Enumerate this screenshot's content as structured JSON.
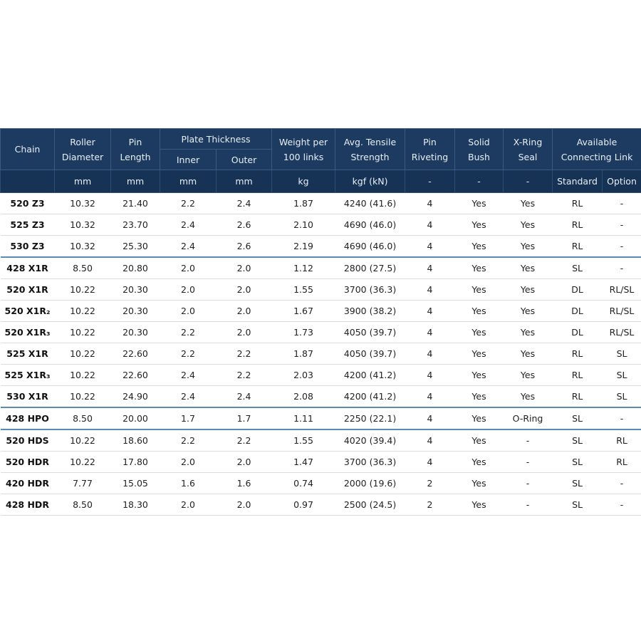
{
  "table": {
    "header": {
      "chain": "Chain",
      "roller": "Roller Diameter",
      "pin": "Pin Length",
      "plate": "Plate Thickness",
      "inner": "Inner",
      "outer": "Outer",
      "weight": "Weight per 100 links",
      "tensile": "Avg. Tensile Strength",
      "riveting": "Pin Riveting",
      "bush": "Solid Bush",
      "seal": "X-Ring Seal",
      "link": "Available Connecting Link"
    },
    "units": [
      "mm",
      "mm",
      "mm",
      "mm",
      "kg",
      "kgf (kN)",
      "-",
      "-",
      "-",
      "Standard",
      "Option"
    ],
    "groups": [
      [
        [
          "520 Z3",
          "10.32",
          "21.40",
          "2.2",
          "2.4",
          "1.87",
          "4240 (41.6)",
          "4",
          "Yes",
          "Yes",
          "RL",
          "-"
        ],
        [
          "525 Z3",
          "10.32",
          "23.70",
          "2.4",
          "2.6",
          "2.10",
          "4690 (46.0)",
          "4",
          "Yes",
          "Yes",
          "RL",
          "-"
        ],
        [
          "530 Z3",
          "10.32",
          "25.30",
          "2.4",
          "2.6",
          "2.19",
          "4690 (46.0)",
          "4",
          "Yes",
          "Yes",
          "RL",
          "-"
        ]
      ],
      [
        [
          "428 X1R",
          "8.50",
          "20.80",
          "2.0",
          "2.0",
          "1.12",
          "2800 (27.5)",
          "4",
          "Yes",
          "Yes",
          "SL",
          "-"
        ],
        [
          "520 X1R",
          "10.22",
          "20.30",
          "2.0",
          "2.0",
          "1.55",
          "3700 (36.3)",
          "4",
          "Yes",
          "Yes",
          "DL",
          "RL/SL"
        ],
        [
          "520 X1R₂",
          "10.22",
          "20.30",
          "2.0",
          "2.0",
          "1.67",
          "3900 (38.2)",
          "4",
          "Yes",
          "Yes",
          "DL",
          "RL/SL"
        ],
        [
          "520 X1R₃",
          "10.22",
          "20.30",
          "2.2",
          "2.0",
          "1.73",
          "4050 (39.7)",
          "4",
          "Yes",
          "Yes",
          "DL",
          "RL/SL"
        ],
        [
          "525 X1R",
          "10.22",
          "22.60",
          "2.2",
          "2.2",
          "1.87",
          "4050 (39.7)",
          "4",
          "Yes",
          "Yes",
          "RL",
          "SL"
        ],
        [
          "525 X1R₃",
          "10.22",
          "22.60",
          "2.4",
          "2.2",
          "2.03",
          "4200 (41.2)",
          "4",
          "Yes",
          "Yes",
          "RL",
          "SL"
        ],
        [
          "530 X1R",
          "10.22",
          "24.90",
          "2.4",
          "2.4",
          "2.08",
          "4200 (41.2)",
          "4",
          "Yes",
          "Yes",
          "RL",
          "SL"
        ]
      ],
      [
        [
          "428 HPO",
          "8.50",
          "20.00",
          "1.7",
          "1.7",
          "1.11",
          "2250 (22.1)",
          "4",
          "Yes",
          "O-Ring",
          "SL",
          "-"
        ]
      ],
      [
        [
          "520 HDS",
          "10.22",
          "18.60",
          "2.2",
          "2.2",
          "1.55",
          "4020 (39.4)",
          "4",
          "Yes",
          "-",
          "SL",
          "RL"
        ],
        [
          "520 HDR",
          "10.22",
          "17.80",
          "2.0",
          "2.0",
          "1.47",
          "3700 (36.3)",
          "4",
          "Yes",
          "-",
          "SL",
          "RL"
        ],
        [
          "420 HDR",
          "7.77",
          "15.05",
          "1.6",
          "1.6",
          "0.74",
          "2000 (19.6)",
          "2",
          "Yes",
          "-",
          "SL",
          "-"
        ],
        [
          "428 HDR",
          "8.50",
          "18.30",
          "2.0",
          "2.0",
          "0.97",
          "2500 (24.5)",
          "2",
          "Yes",
          "-",
          "SL",
          "-"
        ]
      ]
    ]
  }
}
